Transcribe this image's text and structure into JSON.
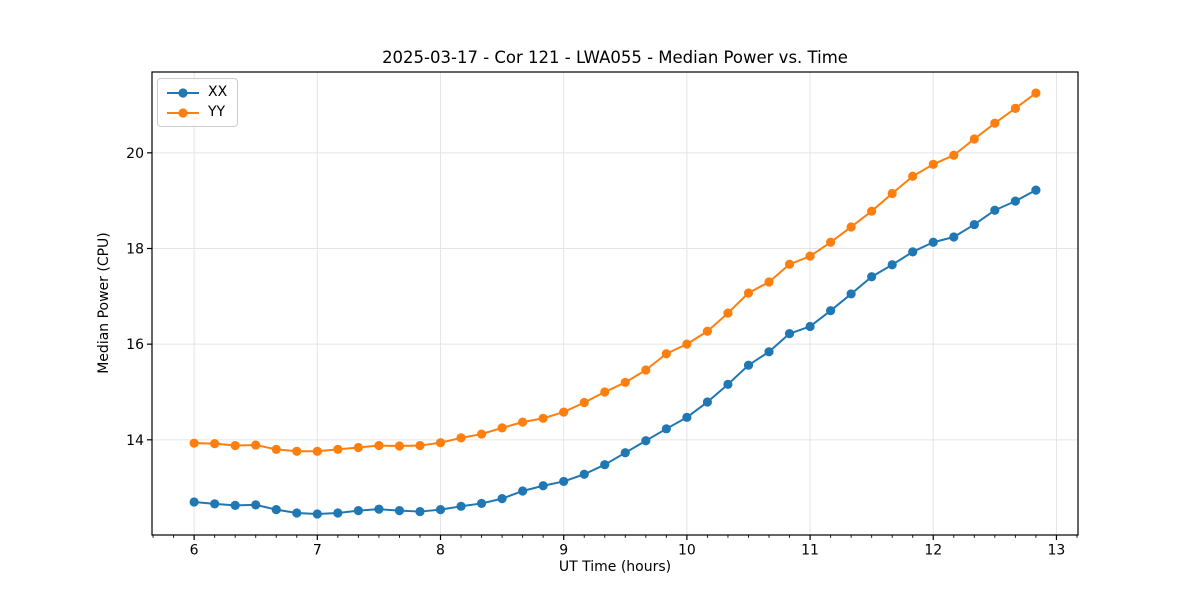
{
  "figure": {
    "title": "2025-03-17 - Cor 121 - LWA055 - Median Power vs. Time"
  },
  "chart_data": {
    "type": "line",
    "title": "2025-03-17 - Cor 121 - LWA055 - Median Power vs. Time",
    "xlabel": "UT Time (hours)",
    "ylabel": "Median Power (CPU)",
    "xlim": [
      5.658,
      13.175
    ],
    "ylim": [
      12.01,
      21.69
    ],
    "xticks": [
      6,
      7,
      8,
      9,
      10,
      11,
      12,
      13
    ],
    "yticks": [
      14,
      16,
      18,
      20
    ],
    "x_minor_step": 0.166667,
    "grid": true,
    "grid_color": "#e5e5e5",
    "legend_position": "upper-left",
    "marker": "circle",
    "x": [
      6.0,
      6.1667,
      6.3333,
      6.5,
      6.6667,
      6.8333,
      7.0,
      7.1667,
      7.3333,
      7.5,
      7.6667,
      7.8333,
      8.0,
      8.1667,
      8.3333,
      8.5,
      8.6667,
      8.8333,
      9.0,
      9.1667,
      9.3333,
      9.5,
      9.6667,
      9.8333,
      10.0,
      10.1667,
      10.3333,
      10.5,
      10.6667,
      10.8333,
      11.0,
      11.1667,
      11.3333,
      11.5,
      11.6667,
      11.8333,
      12.0,
      12.1667,
      12.3333,
      12.5,
      12.6667,
      12.8333
    ],
    "series": [
      {
        "name": "XX",
        "color": "#1f77b4",
        "values": [
          12.7,
          12.66,
          12.63,
          12.64,
          12.54,
          12.47,
          12.45,
          12.47,
          12.52,
          12.55,
          12.52,
          12.5,
          12.54,
          12.61,
          12.67,
          12.77,
          12.93,
          13.04,
          13.13,
          13.28,
          13.48,
          13.73,
          13.98,
          14.23,
          14.47,
          14.79,
          15.16,
          15.56,
          15.84,
          16.22,
          16.37,
          16.7,
          17.05,
          17.41,
          17.66,
          17.93,
          18.13,
          18.24,
          18.5,
          18.8,
          18.99,
          19.22
        ]
      },
      {
        "name": "YY",
        "color": "#ff7f0e",
        "values": [
          13.93,
          13.92,
          13.88,
          13.89,
          13.8,
          13.76,
          13.76,
          13.8,
          13.84,
          13.88,
          13.87,
          13.88,
          13.94,
          14.04,
          14.12,
          14.25,
          14.37,
          14.45,
          14.58,
          14.78,
          15.0,
          15.2,
          15.46,
          15.8,
          16.0,
          16.27,
          16.65,
          17.07,
          17.3,
          17.67,
          17.84,
          18.13,
          18.45,
          18.78,
          19.15,
          19.51,
          19.76,
          19.95,
          20.29,
          20.62,
          20.93,
          21.25
        ]
      }
    ]
  }
}
